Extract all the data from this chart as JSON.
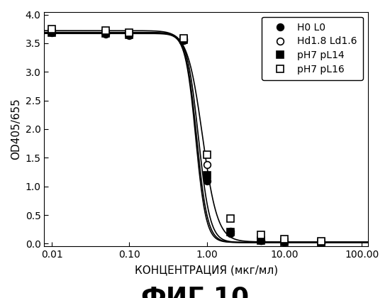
{
  "title": "ФИГ.10",
  "xlabel": "КОНЦЕНТРАЦИЯ (мкг/мл)",
  "ylabel": "OD405/655",
  "ylim": [
    0,
    4.0
  ],
  "yticks": [
    0,
    0.5,
    1.0,
    1.5,
    2.0,
    2.5,
    3.0,
    3.5,
    4.0
  ],
  "xtick_labels": [
    "0.01",
    "0.10",
    "1.00",
    "10.00",
    "100.00"
  ],
  "xtick_vals": [
    0.01,
    0.1,
    1.0,
    10.0,
    100.0
  ],
  "series": [
    {
      "label": "H0 L0",
      "marker": "o",
      "marker_fill": "black",
      "x_pts": [
        0.01,
        0.05,
        0.1,
        0.5,
        1.0,
        2.0,
        5.0,
        10.0,
        30.0
      ],
      "y_pts": [
        3.68,
        3.66,
        3.64,
        3.55,
        1.1,
        0.18,
        0.05,
        0.03,
        0.02
      ],
      "ec50": 0.72,
      "hill": 6.5,
      "top": 3.67,
      "bottom": 0.02
    },
    {
      "label": "Hd1.8 Ld1.6",
      "marker": "o",
      "marker_fill": "white",
      "x_pts": [
        0.01,
        0.05,
        0.1,
        0.5,
        1.0,
        2.0,
        5.0,
        10.0,
        30.0
      ],
      "y_pts": [
        3.7,
        3.68,
        3.66,
        3.57,
        1.38,
        0.22,
        0.06,
        0.04,
        0.02
      ],
      "ec50": 0.78,
      "hill": 5.8,
      "top": 3.69,
      "bottom": 0.02
    },
    {
      "label": "pH7 pL14",
      "marker": "s",
      "marker_fill": "black",
      "x_pts": [
        0.01,
        0.05,
        0.1,
        0.5,
        1.0,
        2.0,
        5.0,
        10.0,
        30.0
      ],
      "y_pts": [
        3.69,
        3.67,
        3.65,
        3.56,
        1.2,
        0.2,
        0.05,
        0.03,
        0.02
      ],
      "ec50": 0.74,
      "hill": 6.2,
      "top": 3.68,
      "bottom": 0.02
    },
    {
      "label": "pH7 pL16",
      "marker": "s",
      "marker_fill": "white",
      "x_pts": [
        0.01,
        0.05,
        0.1,
        0.5,
        1.0,
        2.0,
        5.0,
        10.0,
        30.0
      ],
      "y_pts": [
        3.75,
        3.72,
        3.68,
        3.58,
        1.55,
        0.44,
        0.15,
        0.08,
        0.04
      ],
      "ec50": 0.88,
      "hill": 4.5,
      "top": 3.72,
      "bottom": 0.03
    }
  ],
  "background_color": "#ffffff",
  "title_fontsize": 26,
  "axis_label_fontsize": 11,
  "tick_fontsize": 10,
  "legend_fontsize": 10
}
